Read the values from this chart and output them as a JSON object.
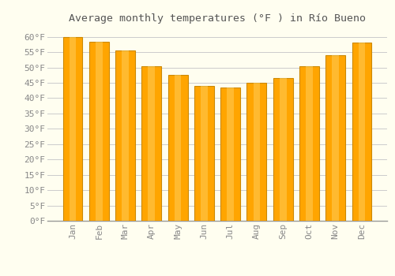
{
  "title": "Average monthly temperatures (°F ) in Río Bueno",
  "months": [
    "Jan",
    "Feb",
    "Mar",
    "Apr",
    "May",
    "Jun",
    "Jul",
    "Aug",
    "Sep",
    "Oct",
    "Nov",
    "Dec"
  ],
  "values": [
    60,
    58.5,
    55.5,
    50.5,
    47.5,
    44,
    43.5,
    45,
    46.5,
    50.5,
    54,
    58
  ],
  "bar_color": "#FFA500",
  "bar_edge_color": "#CC8800",
  "ylim": [
    0,
    63
  ],
  "yticks": [
    0,
    5,
    10,
    15,
    20,
    25,
    30,
    35,
    40,
    45,
    50,
    55,
    60
  ],
  "ytick_labels": [
    "0°F",
    "5°F",
    "10°F",
    "15°F",
    "20°F",
    "25°F",
    "30°F",
    "35°F",
    "40°F",
    "45°F",
    "50°F",
    "55°F",
    "60°F"
  ],
  "grid_color": "#cccccc",
  "background_color": "#fffef0",
  "title_fontsize": 9.5,
  "tick_fontsize": 8,
  "font_family": "monospace",
  "title_color": "#555555",
  "tick_color": "#888888"
}
